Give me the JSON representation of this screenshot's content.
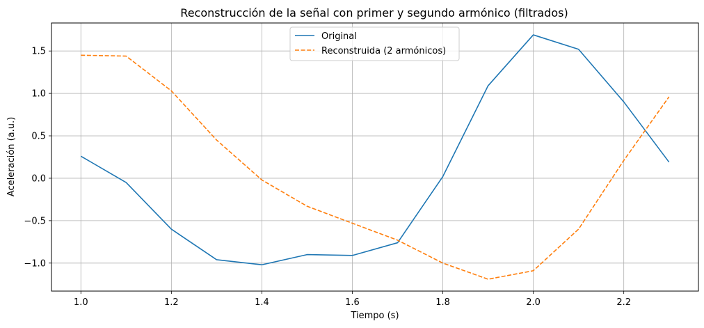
{
  "chart_data": {
    "type": "line",
    "title": "Reconstrucción de la señal con primer y segundo armónico (filtrados)",
    "xlabel": "Tiempo (s)",
    "ylabel": "Aceleración (a.u.)",
    "xlim": [
      0.935,
      2.365
    ],
    "ylim": [
      -1.33,
      1.83
    ],
    "grid": true,
    "legend_position": "upper center",
    "xticks": [
      1.0,
      1.2,
      1.4,
      1.6,
      1.8,
      2.0,
      2.2
    ],
    "xtick_labels": [
      "1.0",
      "1.2",
      "1.4",
      "1.6",
      "1.8",
      "2.0",
      "2.2"
    ],
    "yticks": [
      -1.0,
      -0.5,
      0.0,
      0.5,
      1.0,
      1.5
    ],
    "ytick_labels": [
      "−1.0",
      "−0.5",
      "0.0",
      "0.5",
      "1.0",
      "1.5"
    ],
    "x": [
      1.0,
      1.1,
      1.2,
      1.3,
      1.4,
      1.5,
      1.6,
      1.7,
      1.8,
      1.9,
      2.0,
      2.1,
      2.2,
      2.3
    ],
    "series": [
      {
        "name": "Original",
        "color": "#1f77b4",
        "style": "solid",
        "values": [
          0.26,
          -0.05,
          -0.6,
          -0.96,
          -1.02,
          -0.9,
          -0.91,
          -0.76,
          0.02,
          1.09,
          1.69,
          1.52,
          0.9,
          0.19
        ]
      },
      {
        "name": "Reconstruida (2 armónicos)",
        "color": "#ff7f0e",
        "style": "dashed",
        "values": [
          1.45,
          1.44,
          1.03,
          0.45,
          -0.02,
          -0.33,
          -0.53,
          -0.73,
          -1.0,
          -1.19,
          -1.09,
          -0.6,
          0.21,
          0.96
        ]
      }
    ]
  }
}
